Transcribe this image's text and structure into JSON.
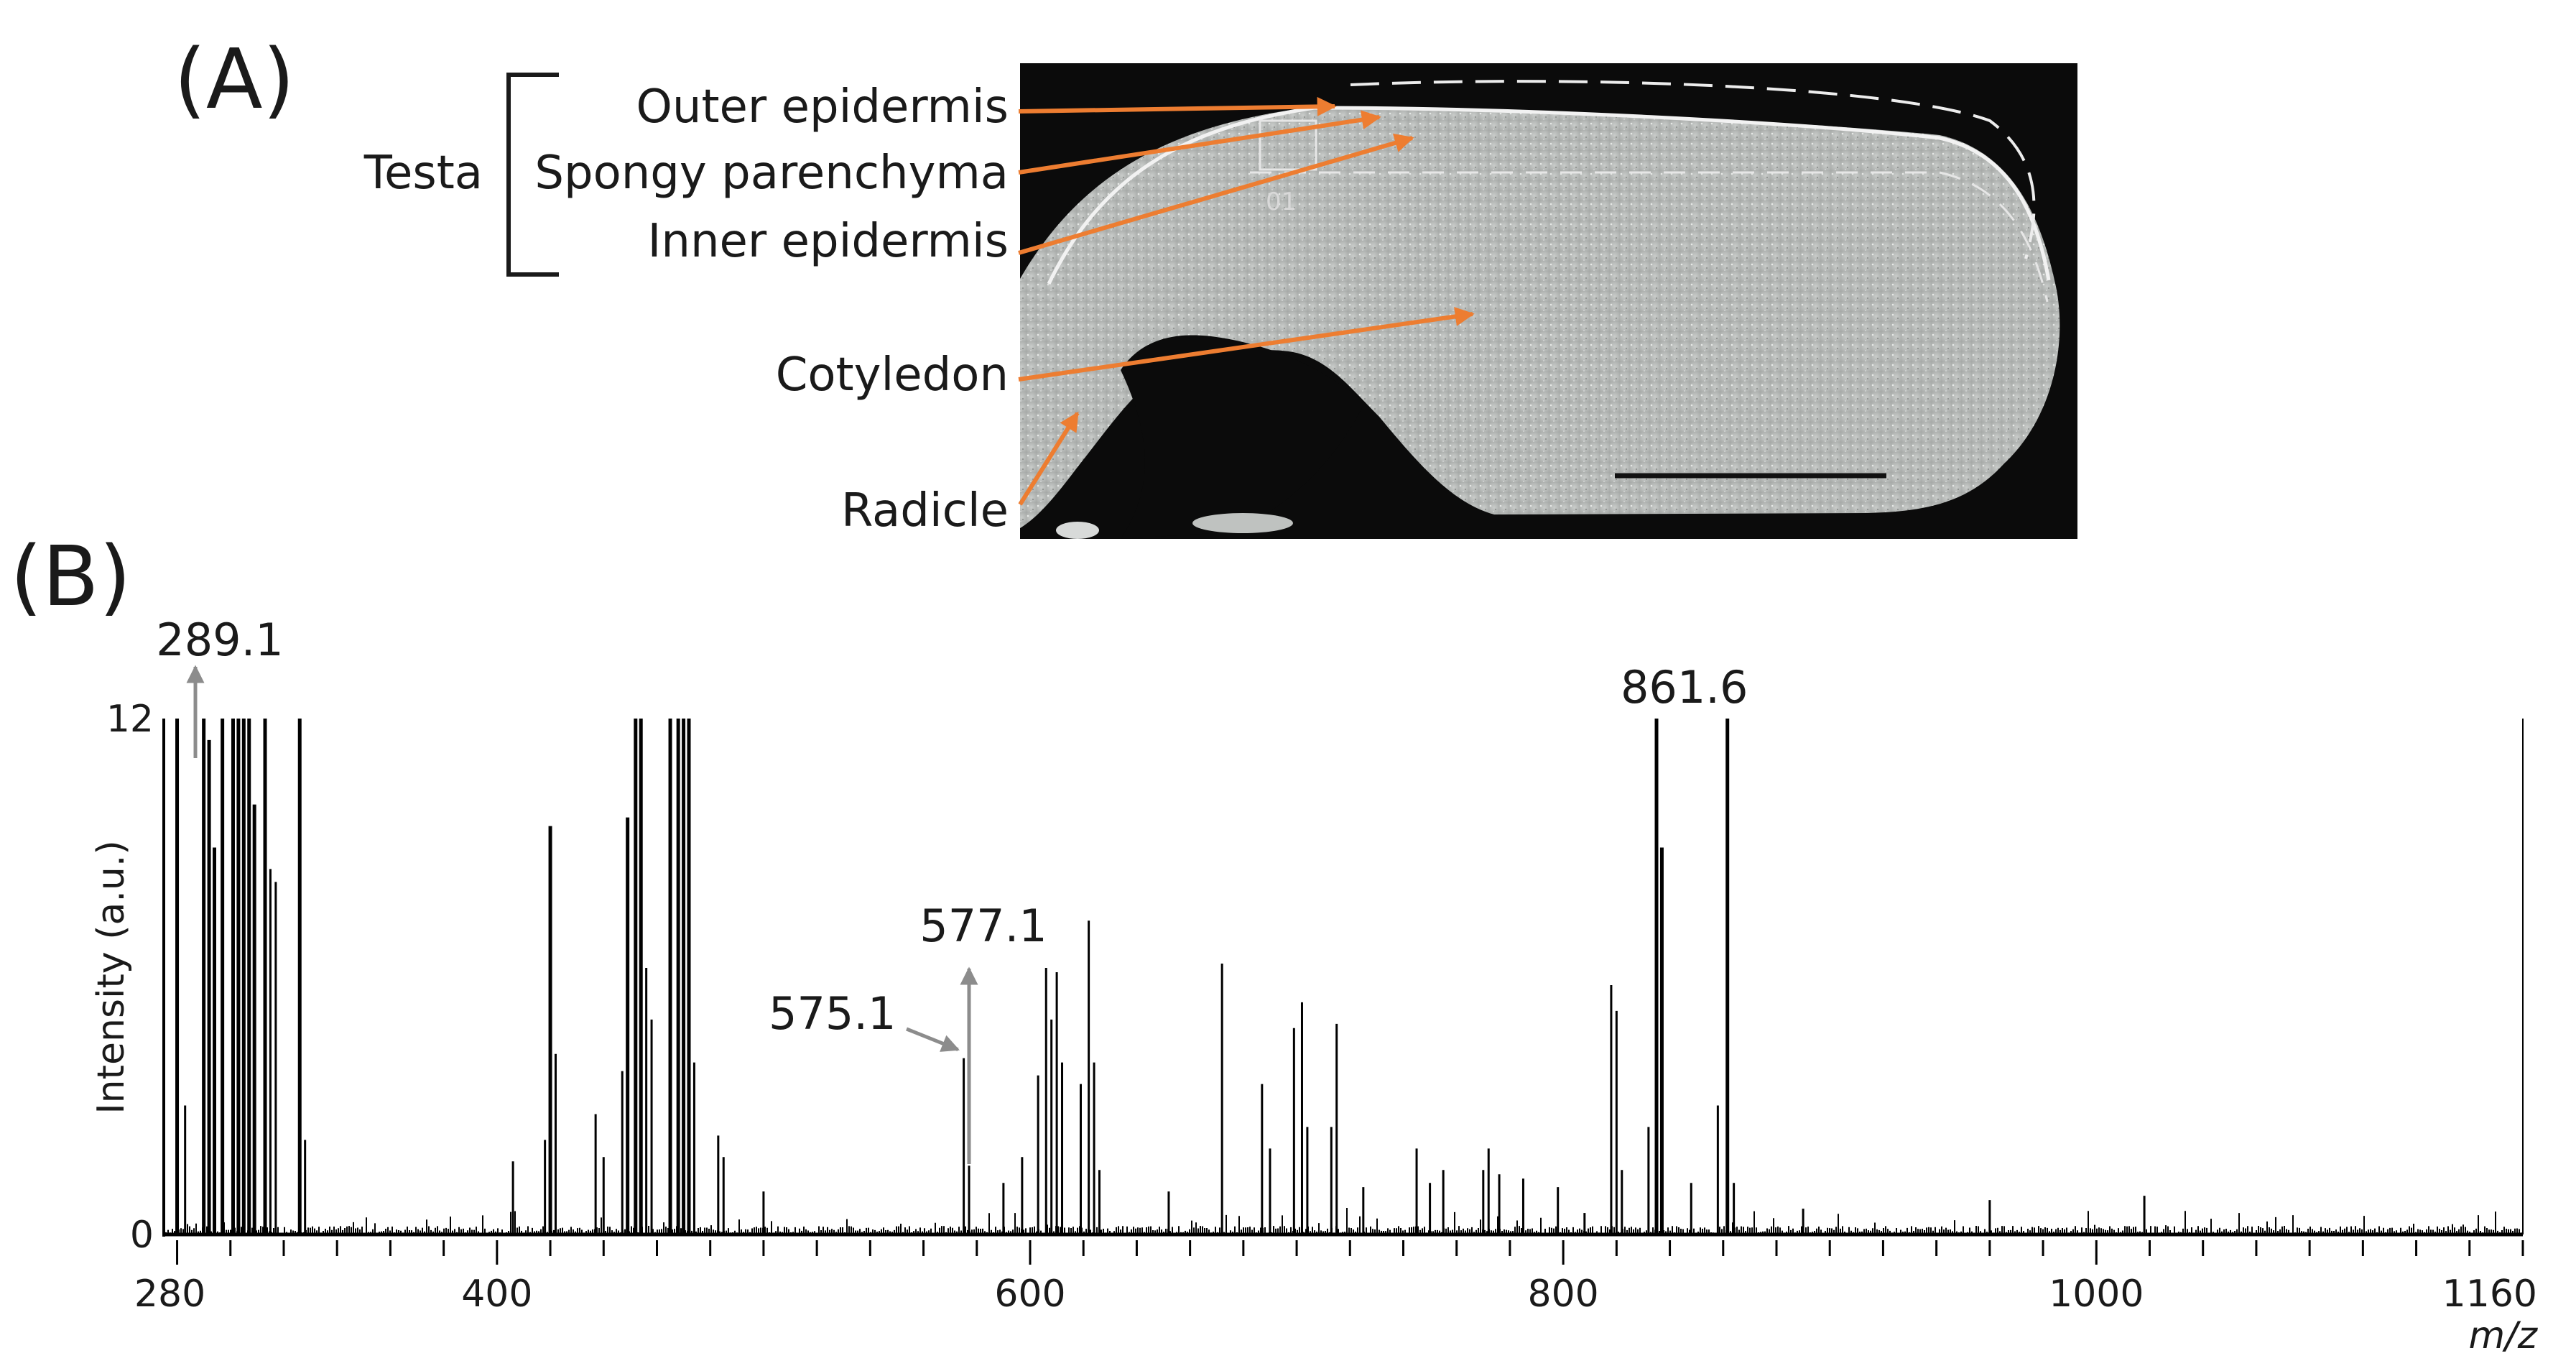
{
  "panels": {
    "a": {
      "label": "(A)",
      "group_label": "Testa",
      "annotations": [
        "Outer epidermis",
        "Spongy parenchyma",
        "Inner epidermis",
        "Cotyledon",
        "Radicle"
      ],
      "micrograph_marker": "01",
      "arrow_color": "#ED7D31"
    },
    "b": {
      "label": "(B)"
    }
  },
  "chart_data": {
    "type": "bar",
    "title": "",
    "xlabel": "m/z",
    "ylabel": "Intensity (a.u.)",
    "xlim": [
      275,
      1160
    ],
    "ylim": [
      0,
      12
    ],
    "x_ticks": [
      "280",
      "400",
      "600",
      "800",
      "1000",
      "1160"
    ],
    "y_ticks": [
      "0",
      "12"
    ],
    "series_color": "#000000",
    "peaks": [
      {
        "x": 280,
        "y": 12
      },
      {
        "x": 283,
        "y": 3
      },
      {
        "x": 290,
        "y": 12
      },
      {
        "x": 292,
        "y": 11.5
      },
      {
        "x": 294,
        "y": 9
      },
      {
        "x": 297,
        "y": 12
      },
      {
        "x": 301,
        "y": 12
      },
      {
        "x": 303,
        "y": 12
      },
      {
        "x": 305,
        "y": 12
      },
      {
        "x": 307,
        "y": 12
      },
      {
        "x": 309,
        "y": 10
      },
      {
        "x": 313,
        "y": 12
      },
      {
        "x": 315,
        "y": 8.5
      },
      {
        "x": 317,
        "y": 8.2
      },
      {
        "x": 326,
        "y": 12
      },
      {
        "x": 328,
        "y": 2.2
      },
      {
        "x": 406,
        "y": 1.7
      },
      {
        "x": 418,
        "y": 2.2
      },
      {
        "x": 420,
        "y": 9.5
      },
      {
        "x": 422,
        "y": 4.2
      },
      {
        "x": 437,
        "y": 2.8
      },
      {
        "x": 440,
        "y": 1.8
      },
      {
        "x": 447,
        "y": 3.8
      },
      {
        "x": 449,
        "y": 9.7
      },
      {
        "x": 452,
        "y": 12
      },
      {
        "x": 454,
        "y": 12
      },
      {
        "x": 456,
        "y": 6.2
      },
      {
        "x": 458,
        "y": 5
      },
      {
        "x": 465,
        "y": 12
      },
      {
        "x": 468,
        "y": 12
      },
      {
        "x": 470,
        "y": 12
      },
      {
        "x": 472,
        "y": 12
      },
      {
        "x": 474,
        "y": 4
      },
      {
        "x": 483,
        "y": 2.3
      },
      {
        "x": 485,
        "y": 1.8
      },
      {
        "x": 500,
        "y": 1
      },
      {
        "x": 575.1,
        "y": 4.1
      },
      {
        "x": 577.1,
        "y": 1.6
      },
      {
        "x": 590,
        "y": 1.2
      },
      {
        "x": 597,
        "y": 1.8
      },
      {
        "x": 603,
        "y": 3.7
      },
      {
        "x": 606,
        "y": 6.2
      },
      {
        "x": 608,
        "y": 5
      },
      {
        "x": 610,
        "y": 6.1
      },
      {
        "x": 612,
        "y": 4
      },
      {
        "x": 619,
        "y": 3.5
      },
      {
        "x": 622,
        "y": 7.3
      },
      {
        "x": 624,
        "y": 4
      },
      {
        "x": 626,
        "y": 1.5
      },
      {
        "x": 652,
        "y": 1
      },
      {
        "x": 672,
        "y": 6.3
      },
      {
        "x": 687,
        "y": 3.5
      },
      {
        "x": 690,
        "y": 2
      },
      {
        "x": 699,
        "y": 4.8
      },
      {
        "x": 702,
        "y": 5.4
      },
      {
        "x": 704,
        "y": 2.5
      },
      {
        "x": 713,
        "y": 2.5
      },
      {
        "x": 715,
        "y": 4.9
      },
      {
        "x": 725,
        "y": 1.1
      },
      {
        "x": 745,
        "y": 2
      },
      {
        "x": 750,
        "y": 1.2
      },
      {
        "x": 755,
        "y": 1.5
      },
      {
        "x": 770,
        "y": 1.5
      },
      {
        "x": 772,
        "y": 2
      },
      {
        "x": 776,
        "y": 1.4
      },
      {
        "x": 785,
        "y": 1.3
      },
      {
        "x": 798,
        "y": 1.1
      },
      {
        "x": 808,
        "y": 0.5
      },
      {
        "x": 818,
        "y": 5.8
      },
      {
        "x": 820,
        "y": 5.2
      },
      {
        "x": 822,
        "y": 1.5
      },
      {
        "x": 832,
        "y": 2.5
      },
      {
        "x": 835,
        "y": 12
      },
      {
        "x": 837,
        "y": 9
      },
      {
        "x": 848,
        "y": 1.2
      },
      {
        "x": 858,
        "y": 3
      },
      {
        "x": 861.6,
        "y": 12
      },
      {
        "x": 864,
        "y": 1.2
      },
      {
        "x": 890,
        "y": 0.6
      },
      {
        "x": 960,
        "y": 0.8
      },
      {
        "x": 1018,
        "y": 0.9
      }
    ],
    "labeled_peaks": [
      {
        "x": 289.1,
        "label": "289.1"
      },
      {
        "x": 575.1,
        "label": "575.1"
      },
      {
        "x": 577.1,
        "label": "577.1"
      },
      {
        "x": 861.6,
        "label": "861.6"
      }
    ],
    "callout_arrow_color": "#8C8C8C"
  }
}
